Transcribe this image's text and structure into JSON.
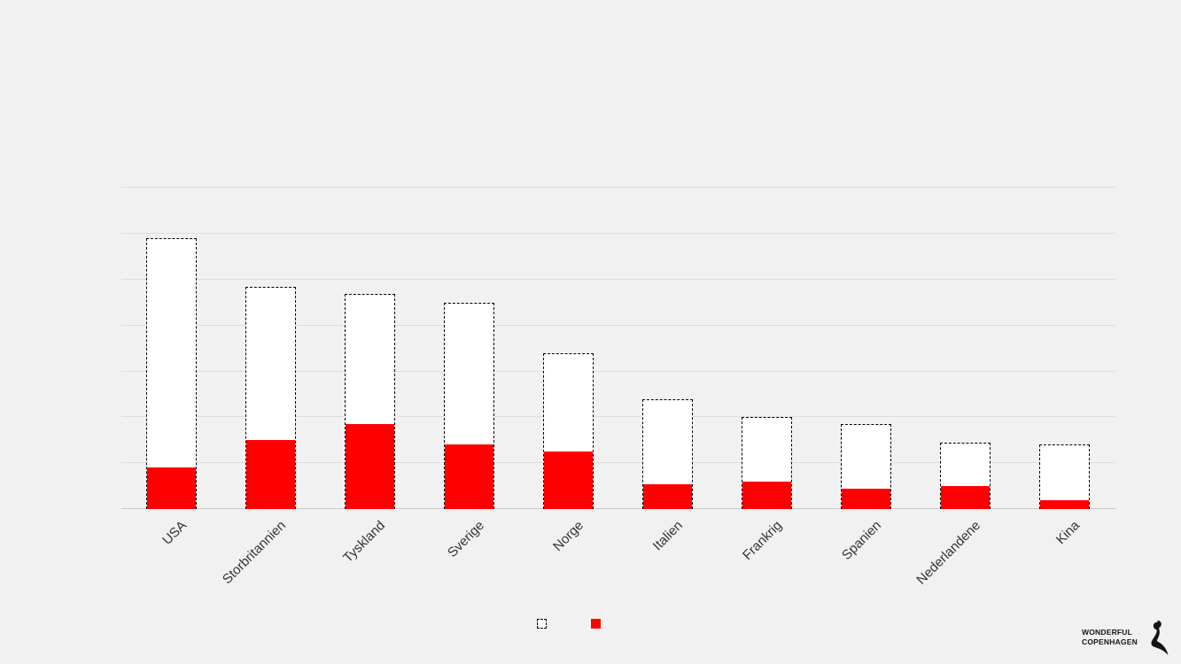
{
  "slide": {
    "background": "#F1F1F1"
  },
  "chart_data": {
    "type": "bar",
    "title": "",
    "categories": [
      "USA",
      "Storbritannien",
      "Tyskland",
      "Sverige",
      "Norge",
      "Italien",
      "Frankrig",
      "Spanien",
      "Nederlandene",
      "Kina"
    ],
    "series": [
      {
        "name": "total-dashed-outline",
        "style": "dashed-outline-white",
        "values": [
          5.9,
          4.85,
          4.7,
          4.5,
          3.4,
          2.4,
          2.0,
          1.85,
          1.45,
          1.4
        ]
      },
      {
        "name": "red-overlay",
        "style": "solid-red",
        "values": [
          0.9,
          1.5,
          1.85,
          1.4,
          1.25,
          0.55,
          0.6,
          0.45,
          0.5,
          0.2
        ]
      }
    ],
    "xlabel": "",
    "ylabel": "",
    "y_axis_labels_visible": false,
    "value_unit": "gridline-units (no numeric axis labels visible)",
    "ylim": [
      0,
      7.5
    ],
    "gridline_interval": 1,
    "gridline_count": 7,
    "grid": "horizontal-only",
    "legend": {
      "position": "bottom-center",
      "items": [
        {
          "label": "",
          "swatch": "dashed-outline-white"
        },
        {
          "label": "",
          "swatch": "solid-red"
        }
      ]
    },
    "colors": {
      "red": "#FF0000",
      "bar_fill": "#FFFFFF",
      "bar_border": "#000000",
      "gridline": "#DEDEDE",
      "axis_line": "#CBCBCB",
      "background": "#F1F1F1",
      "label_text": "#333333"
    }
  },
  "branding": {
    "logo_line1": "WONDERFUL",
    "logo_line2": "COPENHAGEN",
    "logo_icon": "little-mermaid-silhouette",
    "logo_color": "#151515"
  }
}
